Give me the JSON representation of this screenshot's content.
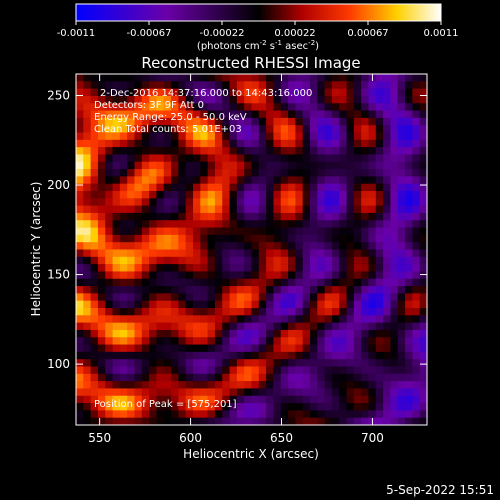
{
  "chart_data": {
    "type": "heatmap",
    "title": "Reconstructed RHESSI Image",
    "xlabel": "Heliocentric X (arcsec)",
    "ylabel": "Heliocentric Y (arcsec)",
    "xlim": [
      537,
      730
    ],
    "ylim": [
      66,
      262
    ],
    "x_ticks": [
      550,
      600,
      650,
      700
    ],
    "y_ticks": [
      100,
      150,
      200,
      250
    ],
    "colorbar": {
      "range": [
        -0.0011,
        0.0011
      ],
      "ticks": [
        "-0.0011",
        "-0.00067",
        "-0.00022",
        "0.00022",
        "0.00067",
        "0.0011"
      ],
      "units_label": "(photons cm",
      "units_label_mid": " s",
      "units_label_end": " asec",
      "units_exp1": "-2",
      "units_exp2": "-1",
      "units_exp3": "-2",
      "colors": [
        "#0000ff",
        "#6a00a8",
        "#000000",
        "#b00000",
        "#ff3a00",
        "#ffd000",
        "#ffffff"
      ]
    },
    "annotations": [
      "2-Dec-2016 14:37:16.000 to 14:43:16.000",
      "Detectors: 3F 9F Att 0",
      "Energy Range: 25.0 - 50.0 keV",
      "Clean    Total counts: 5.01E+03"
    ],
    "peak_label": "Position of Peak = [575,201]",
    "peak_position": [
      575,
      201
    ],
    "grid": false
  },
  "footer": {
    "timestamp": "5-Sep-2022 15:51"
  }
}
